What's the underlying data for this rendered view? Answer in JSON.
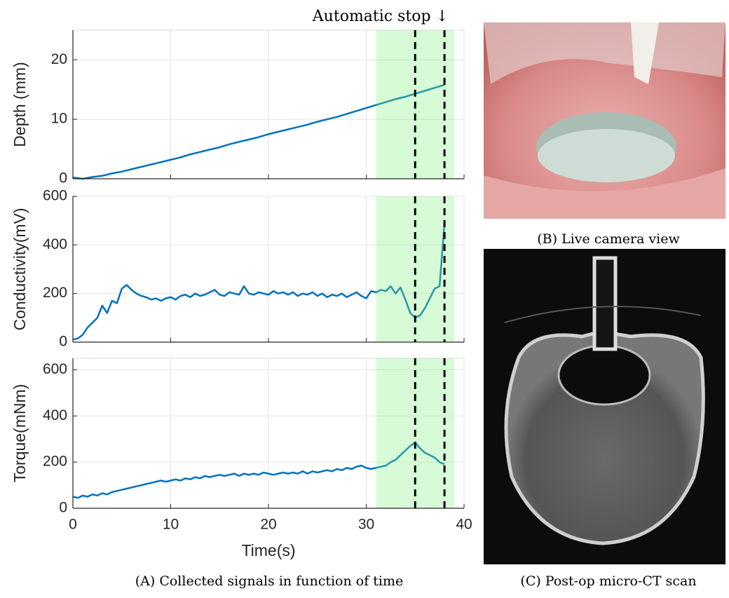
{
  "annotation": "Automatic stop ↓",
  "captions": {
    "a": "(A) Collected signals in function of time",
    "b": "(B) Live camera view",
    "c": "(C) Post-op micro-CT scan"
  },
  "chart_data": [
    {
      "type": "line",
      "ylabel": "Depth (mm)",
      "xlim": [
        0,
        40
      ],
      "ylim": [
        0,
        25
      ],
      "xticks": [
        0,
        10,
        20,
        30,
        40
      ],
      "yticks": [
        0,
        10,
        20
      ],
      "grid": true,
      "color": "#0072bd",
      "highlight": [
        31,
        39
      ],
      "vlines": [
        35,
        38
      ],
      "x": [
        0,
        1,
        2,
        3,
        4,
        5,
        6,
        7,
        8,
        9,
        10,
        11,
        12,
        13,
        14,
        15,
        16,
        17,
        18,
        19,
        20,
        21,
        22,
        23,
        24,
        25,
        26,
        27,
        28,
        29,
        30,
        31,
        32,
        33,
        34,
        35,
        36,
        37,
        38
      ],
      "values": [
        0.2,
        0,
        0.3,
        0.5,
        0.9,
        1.2,
        1.6,
        2.0,
        2.4,
        2.8,
        3.2,
        3.6,
        4.1,
        4.5,
        4.9,
        5.3,
        5.8,
        6.2,
        6.6,
        7.0,
        7.5,
        7.9,
        8.3,
        8.7,
        9.1,
        9.6,
        10.0,
        10.4,
        10.9,
        11.4,
        11.9,
        12.4,
        12.9,
        13.4,
        13.8,
        14.3,
        14.8,
        15.3,
        15.8
      ]
    },
    {
      "type": "line",
      "ylabel": "Conductivity(mV)",
      "xlim": [
        0,
        40
      ],
      "ylim": [
        0,
        600
      ],
      "xticks": [
        0,
        10,
        20,
        30,
        40
      ],
      "yticks": [
        0,
        200,
        400,
        600
      ],
      "grid": true,
      "color": "#0072bd",
      "highlight": [
        31,
        39
      ],
      "vlines": [
        35,
        38
      ],
      "x": [
        0,
        0.5,
        1,
        1.5,
        2,
        2.5,
        3,
        3.5,
        4,
        4.5,
        5,
        5.5,
        6,
        6.5,
        7,
        7.5,
        8,
        8.5,
        9,
        9.5,
        10,
        10.5,
        11,
        11.5,
        12,
        12.5,
        13,
        13.5,
        14,
        14.5,
        15,
        15.5,
        16,
        16.5,
        17,
        17.5,
        18,
        18.5,
        19,
        19.5,
        20,
        20.5,
        21,
        21.5,
        22,
        22.5,
        23,
        23.5,
        24,
        24.5,
        25,
        25.5,
        26,
        26.5,
        27,
        27.5,
        28,
        28.5,
        29,
        29.5,
        30,
        30.5,
        31,
        31.5,
        32,
        32.5,
        33,
        33.5,
        34,
        34.5,
        35,
        35.5,
        36,
        36.5,
        37,
        37.5,
        38
      ],
      "values": [
        10,
        15,
        30,
        60,
        80,
        100,
        150,
        120,
        170,
        160,
        220,
        235,
        215,
        200,
        190,
        185,
        175,
        180,
        170,
        180,
        185,
        175,
        190,
        195,
        185,
        200,
        190,
        195,
        205,
        215,
        195,
        190,
        205,
        200,
        195,
        230,
        200,
        195,
        205,
        200,
        195,
        210,
        200,
        205,
        195,
        205,
        190,
        200,
        195,
        205,
        190,
        200,
        185,
        195,
        190,
        200,
        185,
        195,
        205,
        190,
        180,
        210,
        205,
        215,
        210,
        230,
        200,
        225,
        175,
        120,
        100,
        110,
        140,
        180,
        220,
        230,
        490
      ]
    },
    {
      "type": "line",
      "ylabel": "Torque(mNm)",
      "xlabel": "Time(s)",
      "xlim": [
        0,
        40
      ],
      "ylim": [
        0,
        650
      ],
      "xticks": [
        0,
        10,
        20,
        30,
        40
      ],
      "yticks": [
        0,
        200,
        400,
        600
      ],
      "grid": true,
      "color": "#0072bd",
      "highlight": [
        31,
        39
      ],
      "vlines": [
        35,
        38
      ],
      "x": [
        0,
        0.5,
        1,
        1.5,
        2,
        2.5,
        3,
        3.5,
        4,
        4.5,
        5,
        5.5,
        6,
        6.5,
        7,
        7.5,
        8,
        8.5,
        9,
        9.5,
        10,
        10.5,
        11,
        11.5,
        12,
        12.5,
        13,
        13.5,
        14,
        14.5,
        15,
        15.5,
        16,
        16.5,
        17,
        17.5,
        18,
        18.5,
        19,
        19.5,
        20,
        20.5,
        21,
        21.5,
        22,
        22.5,
        23,
        23.5,
        24,
        24.5,
        25,
        25.5,
        26,
        26.5,
        27,
        27.5,
        28,
        28.5,
        29,
        29.5,
        30,
        30.5,
        31,
        31.5,
        32,
        32.5,
        33,
        33.5,
        34,
        34.5,
        35,
        35.5,
        36,
        36.5,
        37,
        37.5,
        38
      ],
      "values": [
        50,
        45,
        55,
        50,
        60,
        55,
        65,
        60,
        70,
        75,
        80,
        85,
        90,
        95,
        100,
        105,
        110,
        115,
        120,
        115,
        120,
        125,
        120,
        130,
        125,
        135,
        130,
        140,
        135,
        140,
        145,
        140,
        145,
        150,
        140,
        150,
        145,
        150,
        145,
        155,
        150,
        145,
        150,
        155,
        150,
        155,
        150,
        160,
        150,
        160,
        155,
        160,
        165,
        160,
        170,
        165,
        175,
        170,
        180,
        185,
        175,
        170,
        175,
        180,
        185,
        200,
        210,
        230,
        250,
        270,
        285,
        260,
        240,
        230,
        220,
        200,
        190
      ]
    }
  ]
}
